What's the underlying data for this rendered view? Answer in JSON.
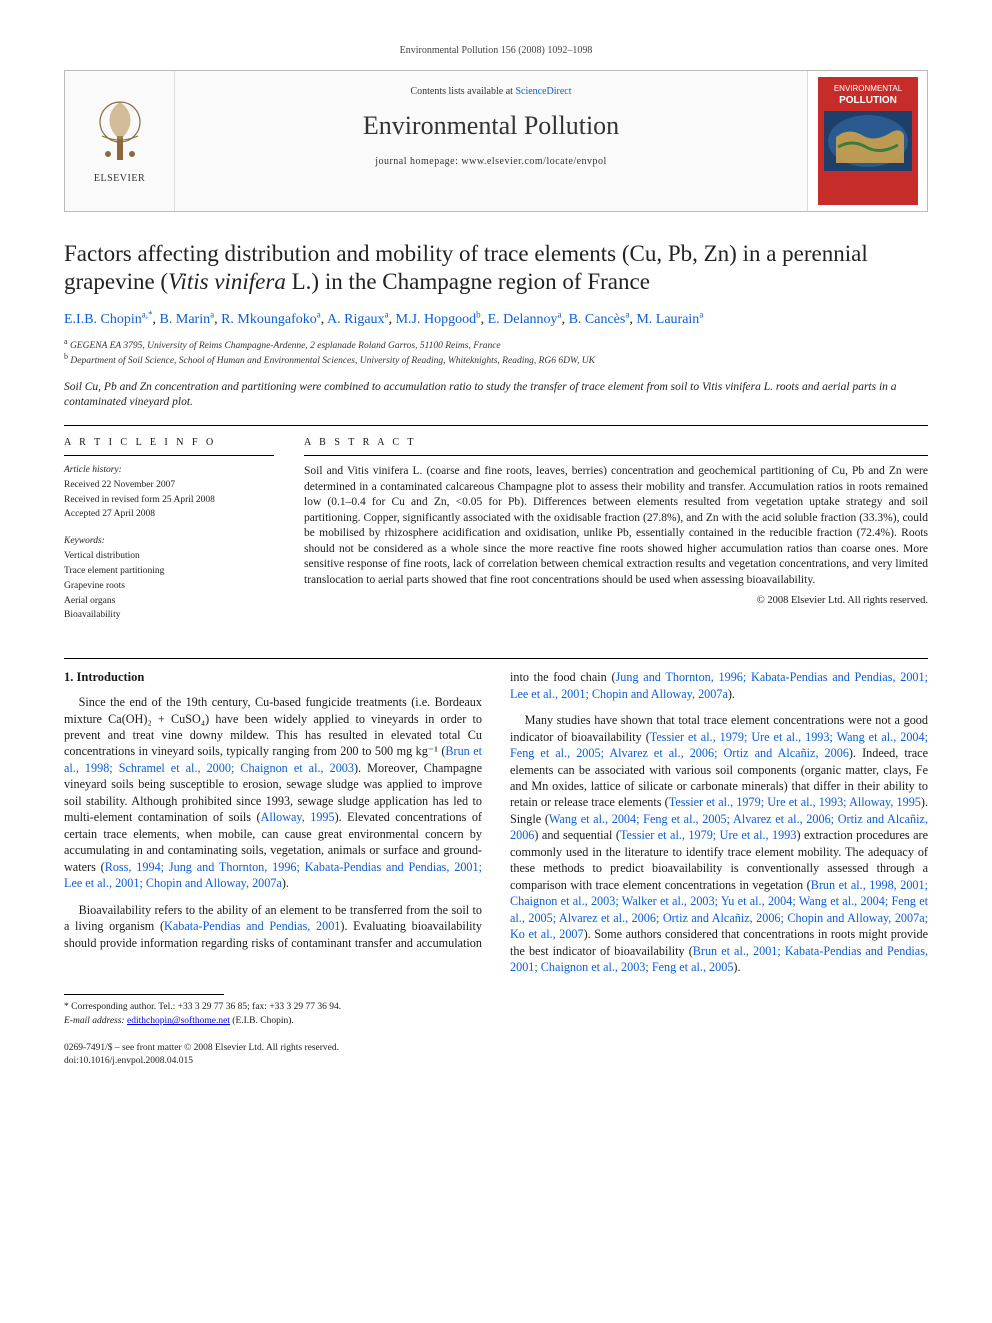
{
  "running_head": "Environmental Pollution 156 (2008) 1092–1098",
  "banner": {
    "publisher": "ELSEVIER",
    "contents_prefix": "Contents lists available at ",
    "contents_link": "ScienceDirect",
    "journal": "Environmental Pollution",
    "homepage_prefix": "journal homepage: ",
    "homepage_url": "www.elsevier.com/locate/envpol",
    "cover_label_top": "ENVIRONMENTAL",
    "cover_label_bottom": "POLLUTION"
  },
  "title_a": "Factors affecting distribution and mobility of trace elements (Cu, Pb, Zn) in a perennial grapevine (",
  "title_ital": "Vitis vinifera",
  "title_b": " L.) in the Champagne region of France",
  "authors_html": "E.I.B. Chopin",
  "authors": [
    {
      "name": "E.I.B. Chopin",
      "aff": "a,",
      "star": true
    },
    {
      "name": "B. Marin",
      "aff": "a"
    },
    {
      "name": "R. Mkoungafoko",
      "aff": "a"
    },
    {
      "name": "A. Rigaux",
      "aff": "a"
    },
    {
      "name": "M.J. Hopgood",
      "aff": "b"
    },
    {
      "name": "E. Delannoy",
      "aff": "a"
    },
    {
      "name": "B. Cancès",
      "aff": "a"
    },
    {
      "name": "M. Laurain",
      "aff": "a"
    }
  ],
  "affiliations": {
    "a": "GEGENA EA 3795, University of Reims Champagne-Ardenne, 2 esplanade Roland Garros, 51100 Reims, France",
    "b": "Department of Soil Science, School of Human and Environmental Sciences, University of Reading, Whiteknights, Reading, RG6 6DW, UK"
  },
  "highlight": "Soil Cu, Pb and Zn concentration and partitioning were combined to accumulation ratio to study the transfer of trace element from soil to Vitis vinifera L. roots and aerial parts in a contaminated vineyard plot.",
  "article_info_heading": "A R T I C L E   I N F O",
  "abstract_heading": "A B S T R A C T",
  "history_label": "Article history:",
  "history": {
    "received": "Received 22 November 2007",
    "revised": "Received in revised form 25 April 2008",
    "accepted": "Accepted 27 April 2008"
  },
  "keywords_label": "Keywords:",
  "keywords": [
    "Vertical distribution",
    "Trace element partitioning",
    "Grapevine roots",
    "Aerial organs",
    "Bioavailability"
  ],
  "abstract": "Soil and Vitis vinifera L. (coarse and fine roots, leaves, berries) concentration and geochemical partitioning of Cu, Pb and Zn were determined in a contaminated calcareous Champagne plot to assess their mobility and transfer. Accumulation ratios in roots remained low (0.1–0.4 for Cu and Zn, <0.05 for Pb). Differences between elements resulted from vegetation uptake strategy and soil partitioning. Copper, significantly associated with the oxidisable fraction (27.8%), and Zn with the acid soluble fraction (33.3%), could be mobilised by rhizosphere acidification and oxidisation, unlike Pb, essentially contained in the reducible fraction (72.4%). Roots should not be considered as a whole since the more reactive fine roots showed higher accumulation ratios than coarse ones. More sensitive response of fine roots, lack of correlation between chemical extraction results and vegetation concentrations, and very limited translocation to aerial parts showed that fine root concentrations should be used when assessing bioavailability.",
  "copyright": "© 2008 Elsevier Ltd. All rights reserved.",
  "section_heading": "1. Introduction",
  "para1_a": "Since the end of the 19th century, Cu-based fungicide treatments (i.e. Bordeaux mixture Ca(OH)₂ + CuSO₄) have been widely applied to vineyards in order to prevent and treat vine downy mildew. This has resulted in elevated total Cu concentrations in vineyard soils, typically ranging from 200 to 500 mg kg⁻¹ (",
  "para1_link1": "Brun et al., 1998; Schramel et al., 2000; Chaignon et al., 2003",
  "para1_b": "). Moreover, Champagne vineyard soils being susceptible to erosion, sewage sludge was applied to improve soil stability. Although prohibited since 1993, sewage sludge application has led to multi-element contamination of soils (",
  "para1_link2": "Alloway, 1995",
  "para1_c": "). Elevated concentrations of certain trace elements, when mobile, can cause great environmental concern by accumulating in and contaminating soils, vegetation, animals or surface and ground-waters (",
  "para1_link3": "Ross, 1994; Jung and Thornton, 1996; Kabata-Pendias and Pendias, 2001; Lee et al., 2001; Chopin and Alloway, 2007a",
  "para1_d": ").",
  "para2_a": "Bioavailability refers to the ability of an element to be transferred from the soil to a living organism (",
  "para2_link1": "Kabata-Pendias and Pendias, 2001",
  "para2_b": "). Evaluating bioavailability should provide information regarding risks of contaminant transfer and accumulation into the food chain (",
  "para2_link2": "Jung and Thornton, 1996; Kabata-Pendias and Pendias, 2001; Lee et al., 2001; Chopin and Alloway, 2007a",
  "para2_c": ").",
  "para3_a": "Many studies have shown that total trace element concentrations were not a good indicator of bioavailability (",
  "para3_link1": "Tessier et al., 1979; Ure et al., 1993; Wang et al., 2004; Feng et al., 2005; Alvarez et al., 2006; Ortiz and Alcañiz, 2006",
  "para3_b": "). Indeed, trace elements can be associated with various soil components (organic matter, clays, Fe and Mn oxides, lattice of silicate or carbonate minerals) that differ in their ability to retain or release trace elements (",
  "para3_link2": "Tessier et al., 1979; Ure et al., 1993; Alloway, 1995",
  "para3_c": "). Single (",
  "para3_link3": "Wang et al., 2004; Feng et al., 2005; Alvarez et al., 2006; Ortiz and Alcañiz, 2006",
  "para3_d": ") and sequential (",
  "para3_link4": "Tessier et al., 1979; Ure et al., 1993",
  "para3_e": ") extraction procedures are commonly used in the literature to identify trace element mobility. The adequacy of these methods to predict bioavailability is conventionally assessed through a comparison with trace element concentrations in vegetation (",
  "para3_link5": "Brun et al., 1998, 2001; Chaignon et al., 2003; Walker et al., 2003; Yu et al., 2004; Wang et al., 2004; Feng et al., 2005; Alvarez et al., 2006; Ortiz and Alcañiz, 2006; Chopin and Alloway, 2007a; Ko et al., 2007",
  "para3_f": "). Some authors considered that concentrations in roots might provide the best indicator of bioavailability (",
  "para3_link6": "Brun et al., 2001; Kabata-Pendias and Pendias, 2001; Chaignon et al., 2003; Feng et al., 2005",
  "para3_g": ").",
  "corr_label": "* Corresponding author. Tel.: +33 3 29 77 36 85; fax: +33 3 29 77 36 94.",
  "corr_email_label": "E-mail address:",
  "corr_email": "edithchopin@softhome.net",
  "corr_email_tail": " (E.I.B. Chopin).",
  "footer_issn": "0269-7491/$ – see front matter © 2008 Elsevier Ltd. All rights reserved.",
  "footer_doi": "doi:10.1016/j.envpol.2008.04.015",
  "colors": {
    "link": "#0b5ed7",
    "text": "#1a1a1a",
    "rule": "#000000",
    "banner_border": "#bbbbbb",
    "cover_red": "#c62d2a",
    "cover_band": "#1f3f6b"
  }
}
